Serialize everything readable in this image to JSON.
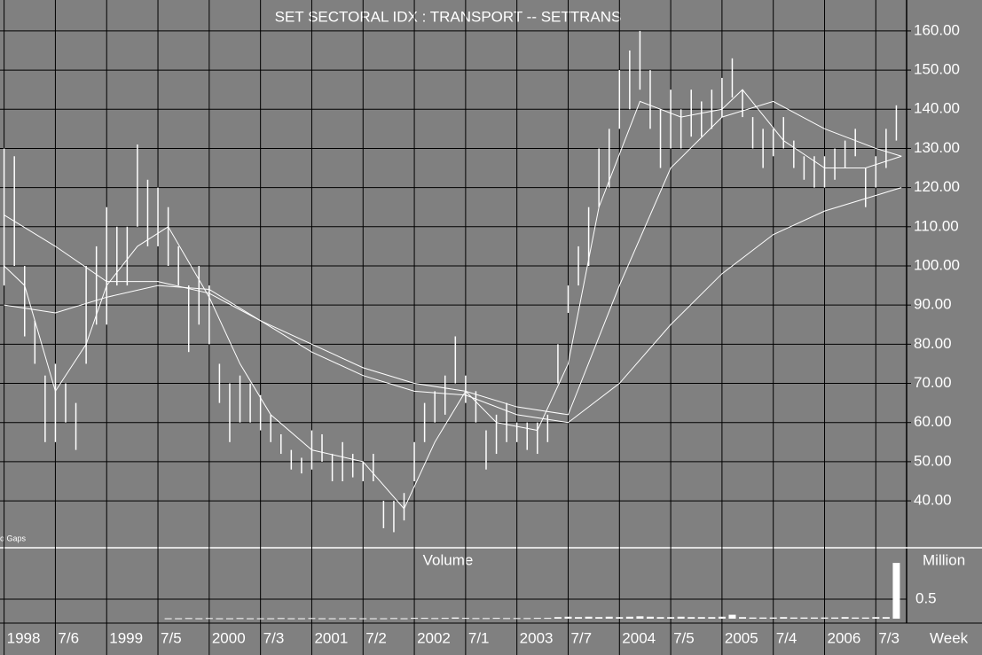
{
  "chart_data": {
    "type": "ohlc",
    "title": "SET SECTORAL IDX : TRANSPORT -- SETTRANS",
    "annotation": "o Gaps",
    "x_axis_label": "Week",
    "color": "#ffffff",
    "grid": true,
    "xlim": [
      1997.96,
      2006.8
    ],
    "xticks": [
      {
        "value": 1998,
        "label": "1998"
      },
      {
        "value": 1998.5,
        "label": "7/6"
      },
      {
        "value": 1999,
        "label": "1999"
      },
      {
        "value": 1999.5,
        "label": "7/5"
      },
      {
        "value": 2000,
        "label": "2000"
      },
      {
        "value": 2000.5,
        "label": "7/3"
      },
      {
        "value": 2001,
        "label": "2001"
      },
      {
        "value": 2001.5,
        "label": "7/2"
      },
      {
        "value": 2002,
        "label": "2002"
      },
      {
        "value": 2002.5,
        "label": "7/1"
      },
      {
        "value": 2003,
        "label": "2003"
      },
      {
        "value": 2003.5,
        "label": "7/7"
      },
      {
        "value": 2004,
        "label": "2004"
      },
      {
        "value": 2004.5,
        "label": "7/5"
      },
      {
        "value": 2005,
        "label": "2005"
      },
      {
        "value": 2005.5,
        "label": "7/4"
      },
      {
        "value": 2006,
        "label": "2006"
      },
      {
        "value": 2006.5,
        "label": "7/3"
      }
    ],
    "ylim": [
      28.7,
      167.9
    ],
    "yticks": [
      {
        "value": 40,
        "label": "40.00"
      },
      {
        "value": 50,
        "label": "50.00"
      },
      {
        "value": 60,
        "label": "60.00"
      },
      {
        "value": 70,
        "label": "70.00"
      },
      {
        "value": 80,
        "label": "80.00"
      },
      {
        "value": 90,
        "label": "90.00"
      },
      {
        "value": 100,
        "label": "100.00"
      },
      {
        "value": 110,
        "label": "110.00"
      },
      {
        "value": 120,
        "label": "120.00"
      },
      {
        "value": 130,
        "label": "130.00"
      },
      {
        "value": 140,
        "label": "140.00"
      },
      {
        "value": 150,
        "label": "150.00"
      },
      {
        "value": 160,
        "label": "160.00"
      }
    ],
    "x": [
      1998.0,
      1998.1,
      1998.2,
      1998.3,
      1998.4,
      1998.5,
      1998.6,
      1998.7,
      1998.8,
      1998.9,
      1999.0,
      1999.1,
      1999.2,
      1999.3,
      1999.4,
      1999.5,
      1999.6,
      1999.7,
      1999.8,
      1999.9,
      2000.0,
      2000.1,
      2000.2,
      2000.3,
      2000.4,
      2000.5,
      2000.6,
      2000.7,
      2000.8,
      2000.9,
      2001.0,
      2001.1,
      2001.2,
      2001.3,
      2001.4,
      2001.5,
      2001.6,
      2001.7,
      2001.8,
      2001.9,
      2002.0,
      2002.1,
      2002.2,
      2002.3,
      2002.4,
      2002.5,
      2002.6,
      2002.7,
      2002.8,
      2002.9,
      2003.0,
      2003.1,
      2003.2,
      2003.3,
      2003.4,
      2003.5,
      2003.6,
      2003.7,
      2003.8,
      2003.9,
      2004.0,
      2004.1,
      2004.2,
      2004.3,
      2004.4,
      2004.5,
      2004.6,
      2004.7,
      2004.8,
      2004.9,
      2005.0,
      2005.1,
      2005.2,
      2005.3,
      2005.4,
      2005.5,
      2005.6,
      2005.7,
      2005.8,
      2005.9,
      2006.0,
      2006.1,
      2006.2,
      2006.3,
      2006.4,
      2006.5,
      2006.6,
      2006.7
    ],
    "high": [
      130,
      128,
      100,
      86,
      72,
      75,
      70,
      65,
      100,
      105,
      115,
      110,
      110,
      131,
      122,
      120,
      115,
      105,
      95,
      100,
      95,
      75,
      70,
      72,
      70,
      67,
      62,
      57,
      53,
      51,
      58,
      57,
      52,
      55,
      52,
      50,
      52,
      40,
      40,
      42,
      55,
      65,
      68,
      72,
      82,
      72,
      68,
      58,
      62,
      65,
      60,
      60,
      60,
      62,
      80,
      95,
      105,
      115,
      130,
      135,
      150,
      155,
      160,
      150,
      140,
      145,
      140,
      145,
      142,
      145,
      148,
      153,
      145,
      138,
      135,
      135,
      138,
      132,
      128,
      128,
      128,
      130,
      132,
      135,
      125,
      128,
      135,
      141
    ],
    "low": [
      95,
      100,
      82,
      75,
      55,
      55,
      60,
      53,
      75,
      85,
      85,
      95,
      95,
      110,
      105,
      105,
      100,
      95,
      78,
      85,
      80,
      65,
      55,
      60,
      60,
      58,
      55,
      52,
      48,
      47,
      48,
      50,
      45,
      45,
      46,
      45,
      45,
      33,
      32,
      35,
      45,
      55,
      60,
      62,
      70,
      65,
      60,
      48,
      52,
      55,
      55,
      53,
      52,
      55,
      70,
      88,
      95,
      100,
      115,
      120,
      135,
      140,
      145,
      135,
      125,
      130,
      130,
      133,
      133,
      135,
      138,
      143,
      138,
      130,
      125,
      128,
      130,
      125,
      122,
      120,
      120,
      122,
      125,
      128,
      115,
      120,
      125,
      132
    ],
    "moving_averages": [
      {
        "color": "#ffffff",
        "x": [
          1998.0,
          1998.2,
          1998.5,
          1998.8,
          1999.0,
          1999.3,
          1999.6,
          2000.0,
          2000.3,
          2000.6,
          2001.0,
          2001.5,
          2001.9,
          2002.2,
          2002.5,
          2002.8,
          2003.2,
          2003.5,
          2003.8,
          2004.2,
          2004.6,
          2005.0,
          2005.2,
          2005.6,
          2006.0,
          2006.4,
          2006.75
        ],
        "values": [
          100,
          95,
          68,
          80,
          95,
          105,
          110,
          92,
          75,
          62,
          53,
          50,
          38,
          55,
          68,
          60,
          58,
          75,
          115,
          142,
          138,
          140,
          145,
          132,
          125,
          125,
          128
        ]
      },
      {
        "color": "#ffffff",
        "x": [
          1998.0,
          1998.5,
          1999.0,
          1999.5,
          2000.0,
          2000.5,
          2001.0,
          2001.5,
          2002.0,
          2002.5,
          2003.0,
          2003.5,
          2004.0,
          2004.5,
          2005.0,
          2005.5,
          2006.0,
          2006.5,
          2006.75
        ],
        "values": [
          113,
          105,
          96,
          96,
          93,
          86,
          80,
          74,
          70,
          68,
          64,
          62,
          95,
          125,
          138,
          142,
          135,
          130,
          128
        ]
      },
      {
        "color": "#ffffff",
        "x": [
          1998.0,
          1998.5,
          1999.0,
          1999.5,
          2000.0,
          2000.5,
          2001.0,
          2001.5,
          2002.0,
          2002.5,
          2003.0,
          2003.5,
          2004.0,
          2004.5,
          2005.0,
          2005.5,
          2006.0,
          2006.5,
          2006.75
        ],
        "values": [
          90,
          88,
          92,
          95,
          94,
          86,
          78,
          72,
          68,
          67,
          62,
          60,
          70,
          85,
          98,
          108,
          114,
          118,
          120
        ]
      }
    ],
    "volume": {
      "title": "Volume",
      "unit_label": "Million",
      "color": "#ffffff",
      "ylim": [
        0,
        1.66
      ],
      "yticks": [
        0.5
      ],
      "x": [
        1999.6,
        1999.7,
        1999.8,
        1999.9,
        2000.0,
        2000.1,
        2000.2,
        2000.3,
        2000.4,
        2000.5,
        2000.6,
        2000.7,
        2000.8,
        2000.9,
        2001.0,
        2001.1,
        2001.2,
        2001.3,
        2001.4,
        2001.5,
        2001.6,
        2001.7,
        2001.8,
        2001.9,
        2002.0,
        2002.1,
        2002.2,
        2002.3,
        2002.4,
        2002.5,
        2002.6,
        2002.7,
        2002.8,
        2002.9,
        2003.0,
        2003.1,
        2003.2,
        2003.3,
        2003.4,
        2003.5,
        2003.6,
        2003.7,
        2003.8,
        2003.9,
        2004.0,
        2004.1,
        2004.2,
        2004.3,
        2004.4,
        2004.5,
        2004.6,
        2004.7,
        2004.8,
        2004.9,
        2005.0,
        2005.1,
        2005.2,
        2005.3,
        2005.4,
        2005.5,
        2005.6,
        2005.7,
        2005.8,
        2005.9,
        2006.0,
        2006.1,
        2006.2,
        2006.3,
        2006.4,
        2006.5,
        2006.6,
        2006.7
      ],
      "values": [
        0.01,
        0.01,
        0.015,
        0.01,
        0.015,
        0.01,
        0.01,
        0.015,
        0.01,
        0.01,
        0.01,
        0.015,
        0.01,
        0.01,
        0.015,
        0.01,
        0.01,
        0.01,
        0.015,
        0.01,
        0.01,
        0.01,
        0.015,
        0.01,
        0.02,
        0.02,
        0.015,
        0.02,
        0.03,
        0.02,
        0.015,
        0.015,
        0.02,
        0.015,
        0.015,
        0.015,
        0.02,
        0.02,
        0.04,
        0.05,
        0.04,
        0.05,
        0.04,
        0.05,
        0.04,
        0.05,
        0.06,
        0.05,
        0.04,
        0.04,
        0.05,
        0.04,
        0.04,
        0.04,
        0.05,
        0.1,
        0.04,
        0.03,
        0.03,
        0.03,
        0.04,
        0.03,
        0.03,
        0.03,
        0.03,
        0.03,
        0.04,
        0.03,
        0.03,
        0.04,
        0.04,
        1.43
      ]
    }
  }
}
